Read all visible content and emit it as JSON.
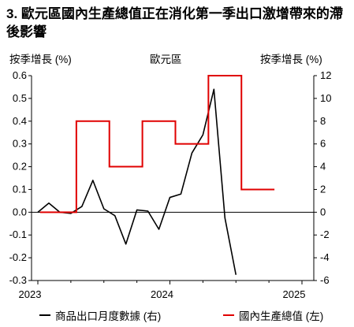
{
  "title": "3. 歐元區國內生產總值正在消化第一季出口激增帶來的滯後影響",
  "chart_data": {
    "type": "line",
    "title": "3. 歐元區國內生產總值正在消化第一季出口激增帶來的滯後影響",
    "ylabel_left": "按季增長 (%)",
    "ylabel_right": "按季增長 (%)",
    "center_label": "歐元區",
    "ylim_left": [
      -0.3,
      0.6
    ],
    "ylim_right": [
      -6,
      12
    ],
    "yticks_left": [
      "0.6",
      "0.5",
      "0.4",
      "0.3",
      "0.2",
      "0.1",
      "0.0",
      "-0.1",
      "-0.2",
      "-0.3"
    ],
    "yticks_right": [
      "12",
      "10",
      "8",
      "6",
      "4",
      "2",
      "0",
      "-2",
      "-4",
      "-6"
    ],
    "xticks": [
      "2023",
      "2024",
      "2025"
    ],
    "xlim": [
      2023.0,
      2025.0
    ],
    "grid": false,
    "legend_position": "bottom",
    "series": [
      {
        "name": "商品出口月度數據 (右)",
        "axis": "right",
        "color": "#000000",
        "x": [
          "2023-01",
          "2023-02",
          "2023-03",
          "2023-04",
          "2023-05",
          "2023-06",
          "2023-07",
          "2023-08",
          "2023-09",
          "2023-10",
          "2023-11",
          "2023-12",
          "2024-01",
          "2024-02",
          "2024-03",
          "2024-04",
          "2024-05",
          "2024-06",
          "2024-07"
        ],
        "values": [
          0.0,
          0.8,
          0.0,
          -0.1,
          0.5,
          2.8,
          0.3,
          -0.3,
          -2.8,
          0.2,
          0.1,
          -1.5,
          1.3,
          1.6,
          5.2,
          6.8,
          10.8,
          -0.5,
          -5.5
        ]
      },
      {
        "name": "國內生產總值 (左)",
        "axis": "left",
        "color": "#e00000",
        "x": [
          "2023-Q1",
          "2023-Q2",
          "2023-Q3",
          "2023-Q4",
          "2024-Q1",
          "2024-Q2",
          "2024-Q3"
        ],
        "values": [
          0.0,
          0.4,
          0.2,
          0.4,
          0.3,
          0.6,
          0.1
        ]
      }
    ]
  }
}
